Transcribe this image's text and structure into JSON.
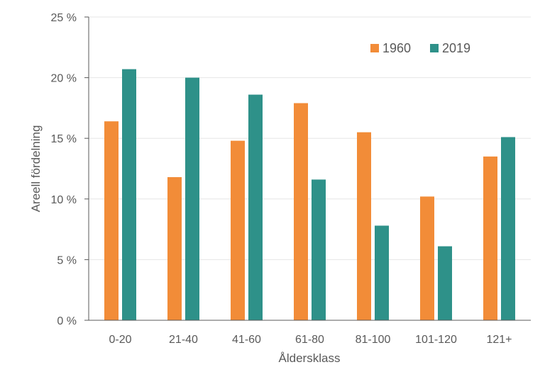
{
  "chart_data": {
    "type": "bar",
    "title": "",
    "xlabel": "Åldersklass",
    "ylabel": "Areell fördelning",
    "categories": [
      "0-20",
      "21-40",
      "41-60",
      "61-80",
      "81-100",
      "101-120",
      "121+"
    ],
    "series": [
      {
        "name": "1960",
        "color": "#f28c38",
        "values": [
          16.4,
          11.8,
          14.8,
          17.9,
          15.5,
          10.2,
          13.5
        ]
      },
      {
        "name": "2019",
        "color": "#2e9189",
        "values": [
          20.7,
          20.0,
          18.6,
          11.6,
          7.8,
          6.1,
          15.1
        ]
      }
    ],
    "ylim": [
      0,
      25
    ],
    "yticks": [
      "0 %",
      "5 %",
      "10 %",
      "15 %",
      "20 %",
      "25 %"
    ],
    "grid": true,
    "legend_position": "top-right"
  }
}
